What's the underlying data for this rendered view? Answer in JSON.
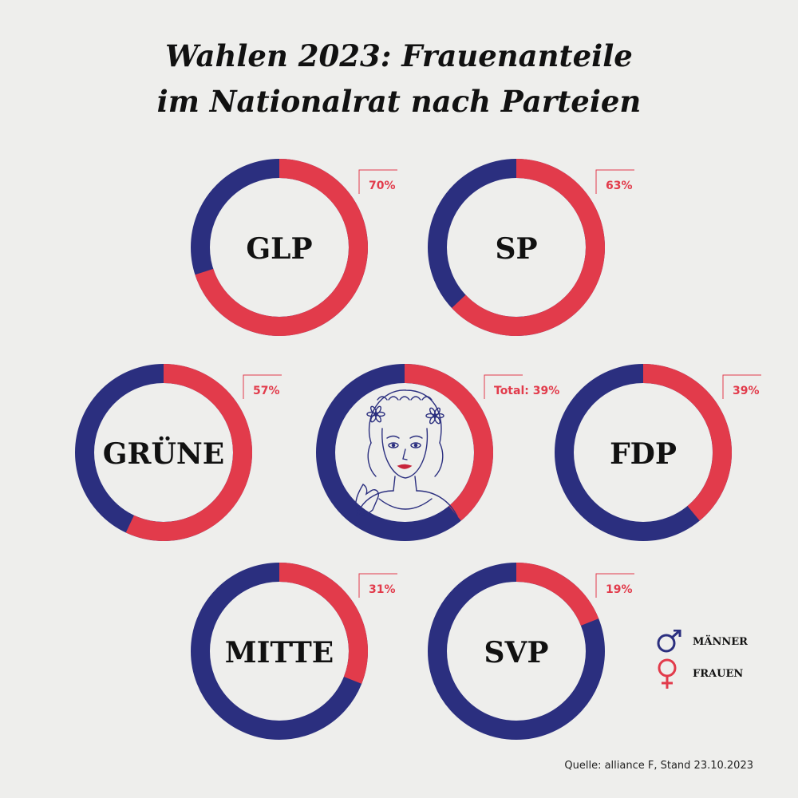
{
  "title_line1": "Wahlen 2023: Frauenanteile",
  "title_line2": "im Nationalrat nach Parteien",
  "source": "Quelle: alliance F, Stand 23.10.2023",
  "legend": {
    "men": "MÄNNER",
    "women": "FRAUEN",
    "men_icon": "male-symbol-icon",
    "women_icon": "female-symbol-icon"
  },
  "colors": {
    "men": "#2b2f7f",
    "women": "#e23b4b"
  },
  "chart_data": {
    "type": "pie",
    "variant": "donut",
    "series": [
      {
        "party": "GLP",
        "women_label": "70%",
        "women": 70
      },
      {
        "party": "SP",
        "women_label": "63%",
        "women": 63
      },
      {
        "party": "GRÜNE",
        "women_label": "57%",
        "women": 57
      },
      {
        "party": "",
        "women_label": "Total: 39%",
        "women": 39
      },
      {
        "party": "FDP",
        "women_label": "39%",
        "women": 39
      },
      {
        "party": "MITTE",
        "women_label": "31%",
        "women": 31
      },
      {
        "party": "SVP",
        "women_label": "19%",
        "women": 19
      }
    ]
  }
}
